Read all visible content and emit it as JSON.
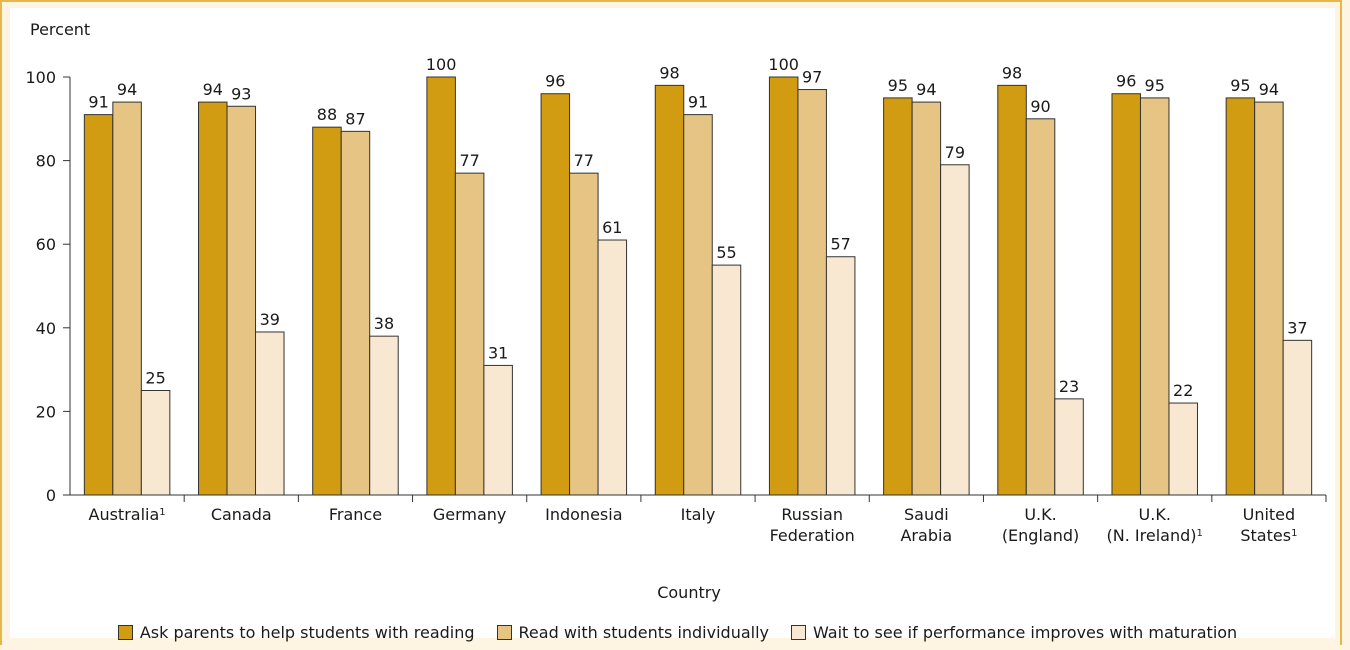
{
  "chart_data": {
    "type": "bar",
    "ylabel": "Percent",
    "xlabel": "Country",
    "ylim": [
      0,
      100
    ],
    "yticks": [
      0,
      20,
      40,
      60,
      80,
      100
    ],
    "grid": false,
    "legend_position": "bottom",
    "categories": [
      {
        "lines": [
          "Australia"
        ],
        "footnote": "1"
      },
      {
        "lines": [
          "Canada"
        ],
        "footnote": ""
      },
      {
        "lines": [
          "France"
        ],
        "footnote": ""
      },
      {
        "lines": [
          "Germany"
        ],
        "footnote": ""
      },
      {
        "lines": [
          "Indonesia"
        ],
        "footnote": ""
      },
      {
        "lines": [
          "Italy"
        ],
        "footnote": ""
      },
      {
        "lines": [
          "Russian",
          "Federation"
        ],
        "footnote": ""
      },
      {
        "lines": [
          "Saudi",
          "Arabia"
        ],
        "footnote": ""
      },
      {
        "lines": [
          "U.K.",
          "(England)"
        ],
        "footnote": ""
      },
      {
        "lines": [
          "U.K.",
          "(N. Ireland)"
        ],
        "footnote": "1"
      },
      {
        "lines": [
          "United",
          "States"
        ],
        "footnote": "1"
      }
    ],
    "series": [
      {
        "name": "Ask parents to help students with reading",
        "color": "#d19b12",
        "values": [
          91,
          94,
          88,
          100,
          96,
          98,
          100,
          95,
          98,
          96,
          95
        ]
      },
      {
        "name": "Read with students individually",
        "color": "#e6c483",
        "values": [
          94,
          93,
          87,
          77,
          77,
          91,
          97,
          94,
          90,
          95,
          94
        ]
      },
      {
        "name": "Wait to see if performance improves with maturation",
        "color": "#f8e8d2",
        "values": [
          25,
          39,
          38,
          31,
          61,
          55,
          57,
          79,
          23,
          22,
          37
        ]
      }
    ]
  }
}
